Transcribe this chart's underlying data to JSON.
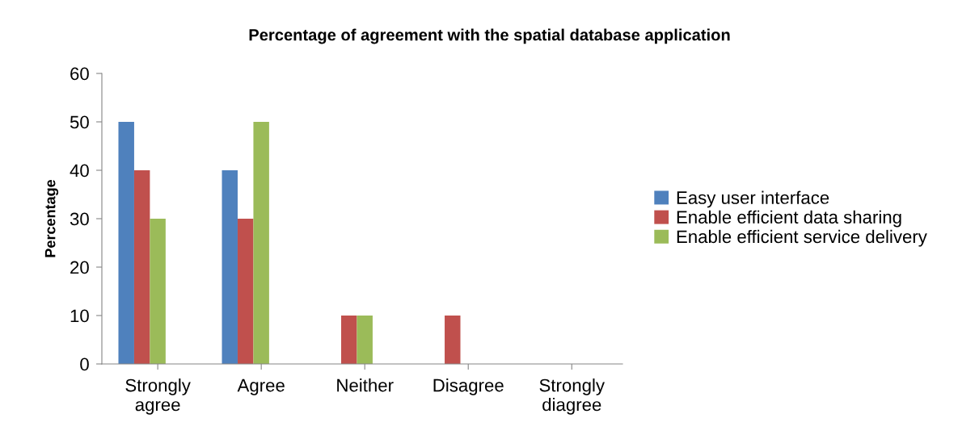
{
  "chart_data": {
    "type": "bar",
    "title": "Percentage of agreement with the spatial database application",
    "ylabel": "Percentage",
    "categories": [
      "Strongly\nagree",
      "Agree",
      "Neither",
      "Disagree",
      "Strongly\ndiagree"
    ],
    "series": [
      {
        "name": "Easy user interface",
        "color": "#4f81bd",
        "values": [
          50,
          40,
          0,
          0,
          0
        ]
      },
      {
        "name": "Enable efficient data sharing",
        "color": "#c0504d",
        "values": [
          40,
          30,
          10,
          10,
          0
        ]
      },
      {
        "name": "Enable efficient service delivery",
        "color": "#9bbb59",
        "values": [
          30,
          50,
          10,
          0,
          0
        ]
      }
    ],
    "ylim": [
      0,
      60
    ],
    "yticks": [
      0,
      10,
      20,
      30,
      40,
      50,
      60
    ],
    "grid": false,
    "legend": "right"
  }
}
